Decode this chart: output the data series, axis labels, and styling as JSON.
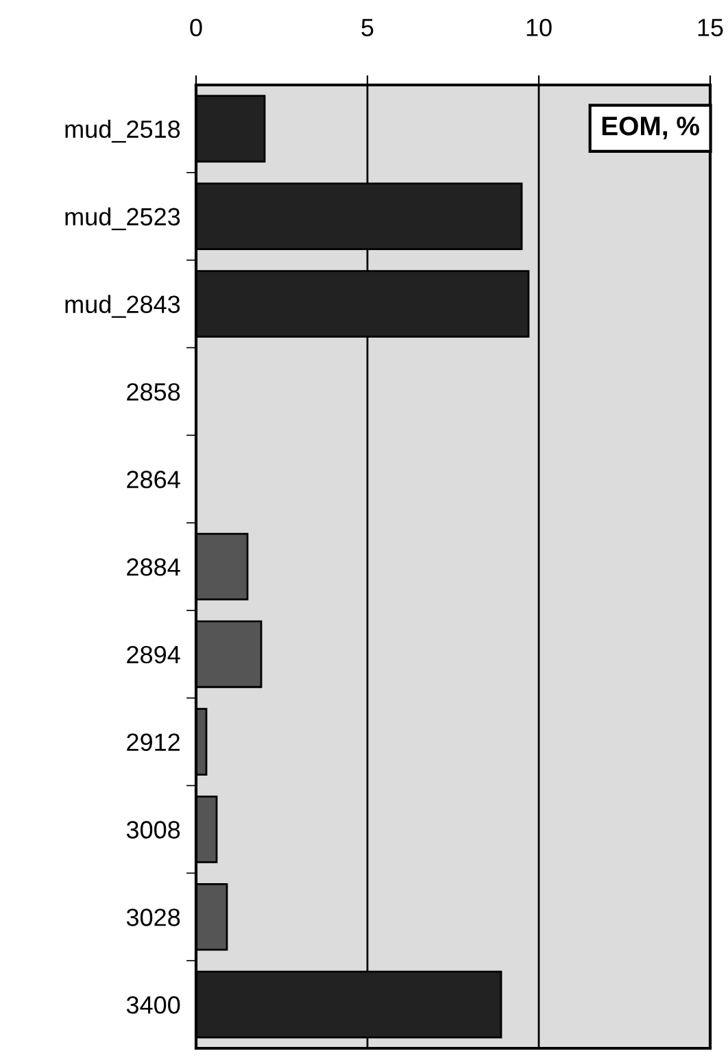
{
  "chart_data": {
    "type": "bar",
    "orientation": "horizontal",
    "title": "EOM, %",
    "categories": [
      "mud_2518",
      "mud_2523",
      "mud_2843",
      "2858",
      "2864",
      "2884",
      "2894",
      "2912",
      "3008",
      "3028",
      "3400"
    ],
    "values": [
      2.0,
      9.5,
      9.7,
      null,
      null,
      1.5,
      1.9,
      0.3,
      0.6,
      0.9,
      8.9
    ],
    "colors": [
      "#222222",
      "#222222",
      "#222222",
      "#222222",
      "#222222",
      "#555555",
      "#555555",
      "#555555",
      "#555555",
      "#555555",
      "#222222"
    ],
    "xlim": [
      0,
      15
    ],
    "xticks": [
      0,
      5,
      10,
      15
    ],
    "grid": "x"
  }
}
